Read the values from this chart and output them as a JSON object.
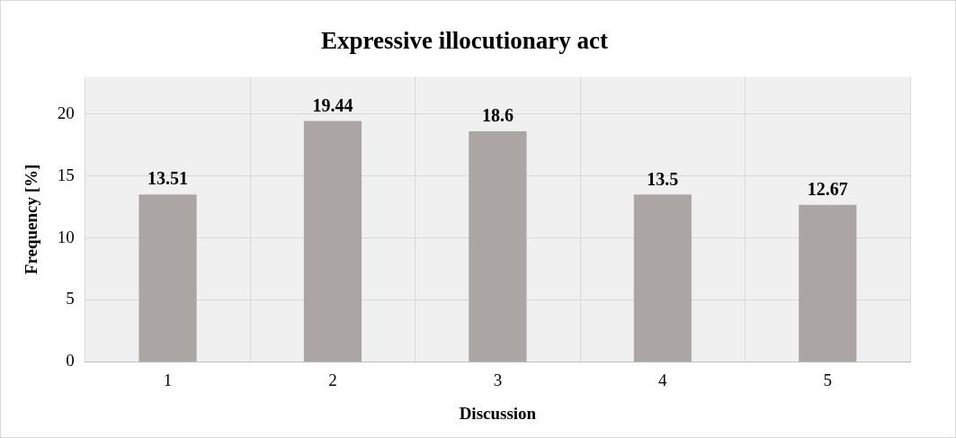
{
  "chart_data": {
    "type": "bar",
    "title": "Expressive illocutionary act",
    "xlabel": "Discussion",
    "ylabel": "Frequency [%]",
    "categories": [
      "1",
      "2",
      "3",
      "4",
      "5"
    ],
    "values": [
      13.51,
      19.44,
      18.6,
      13.5,
      12.67
    ],
    "color": "#aba6a4",
    "ylim": [
      0,
      23
    ],
    "yticks": [
      0,
      5,
      10,
      15,
      20
    ],
    "grid": true,
    "data_labels": true
  }
}
